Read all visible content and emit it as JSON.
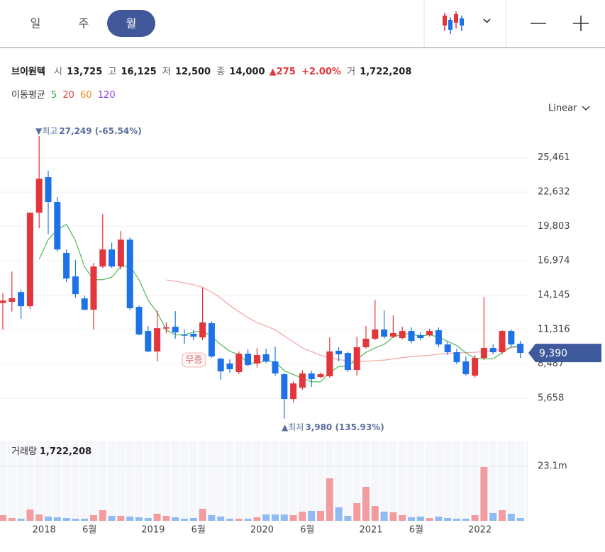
{
  "tabs": [
    "일",
    "주",
    "월"
  ],
  "stock": {
    "name": "브이원텍",
    "fields": [
      {
        "label": "시",
        "value": "13,725"
      },
      {
        "label": "고",
        "value": "16,125"
      },
      {
        "label": "저",
        "value": "12,500"
      },
      {
        "label": "종",
        "value": "14,000"
      }
    ],
    "change": "▲275",
    "change_pct": "+2.00%",
    "volume_label": "거",
    "volume": "1,722,208"
  },
  "moving_average_label": "이동평균",
  "scale_mode": "Linear",
  "chart_data": {
    "type": "candlestick",
    "categories": [
      null,
      null,
      null,
      null,
      "2018",
      null,
      null,
      null,
      null,
      "6월",
      null,
      null,
      null,
      null,
      null,
      null,
      "2019",
      null,
      null,
      null,
      null,
      "6월",
      null,
      null,
      null,
      null,
      null,
      null,
      "2020",
      null,
      null,
      null,
      null,
      "6월",
      null,
      null,
      null,
      null,
      null,
      null,
      "2021",
      null,
      null,
      null,
      null,
      "6월",
      null,
      null,
      null,
      null,
      null,
      null,
      "2022",
      null,
      null,
      null,
      null,
      null
    ],
    "open": [
      13500,
      13600,
      14400,
      13240,
      20940,
      23860,
      21820,
      17620,
      15690,
      13880,
      12950,
      16510,
      17910,
      16510,
      18720,
      13180,
      11200,
      9510,
      11400,
      11550,
      10900,
      10970,
      10670,
      11840,
      8920,
      8520,
      7820,
      9330,
      8520,
      9280,
      8690,
      7640,
      5600,
      6530,
      7700,
      7410,
      7470,
      9570,
      9390,
      7990,
      9860,
      10560,
      11320,
      10730,
      10620,
      11200,
      10850,
      10850,
      11260,
      10090,
      9450,
      8690,
      7520,
      8980,
      9800,
      9450,
      11200,
      10150
    ],
    "high": [
      14300,
      16100,
      14600,
      20940,
      27249,
      24380,
      22230,
      17900,
      17030,
      14100,
      16800,
      20820,
      18490,
      19420,
      18900,
      13300,
      11610,
      12890,
      11900,
      12830,
      11320,
      11270,
      14760,
      12000,
      9000,
      8860,
      9510,
      9700,
      9800,
      9740,
      9920,
      7700,
      7060,
      7990,
      7930,
      7780,
      10670,
      9860,
      9500,
      10730,
      11610,
      13770,
      12890,
      12480,
      11550,
      11500,
      11100,
      11380,
      11490,
      10380,
      9740,
      9100,
      9220,
      14000,
      10090,
      11260,
      11320,
      10380
    ],
    "low": [
      11300,
      12800,
      12200,
      13000,
      19660,
      19190,
      17730,
      15230,
      13940,
      12900,
      11320,
      16390,
      16390,
      16270,
      12950,
      10850,
      9450,
      8690,
      11030,
      10560,
      10150,
      10440,
      10440,
      8980,
      7170,
      7760,
      7640,
      8280,
      8200,
      8570,
      7520,
      3980,
      5310,
      6360,
      6590,
      7290,
      7350,
      8690,
      7820,
      7520,
      9740,
      10440,
      10560,
      10620,
      10500,
      10180,
      10440,
      10730,
      9860,
      9220,
      8460,
      7520,
      7350,
      8800,
      9280,
      9280,
      9860,
      8980
    ],
    "close": [
      13700,
      13900,
      13240,
      20940,
      23740,
      21820,
      17910,
      15520,
      14230,
      12950,
      16510,
      17910,
      16510,
      18720,
      13070,
      10910,
      9510,
      11430,
      11500,
      11080,
      10840,
      10730,
      11900,
      9100,
      7870,
      8050,
      9330,
      8400,
      9220,
      8690,
      7700,
      5600,
      6880,
      7700,
      7230,
      7640,
      9510,
      9280,
      7990,
      9860,
      10560,
      11320,
      10730,
      11030,
      11200,
      10380,
      10620,
      11200,
      10090,
      9450,
      8630,
      7640,
      8980,
      9800,
      9450,
      11200,
      10090,
      9390
    ],
    "up_color": "#e3353c",
    "down_color": "#1c72e6",
    "ylim": [
      2570,
      28240
    ],
    "yticks": [
      {
        "value": 5658,
        "label": "5,658"
      },
      {
        "value": 8487,
        "label": "8,487"
      },
      {
        "value": 11316,
        "label": "11,316"
      },
      {
        "value": 14145,
        "label": "14,145"
      },
      {
        "value": 16974,
        "label": "16,974"
      },
      {
        "value": 19803,
        "label": "19,803"
      },
      {
        "value": 22632,
        "label": "22,632"
      },
      {
        "value": 25461,
        "label": "25,461"
      }
    ],
    "grid": true,
    "moving_averages": [
      {
        "name": "5",
        "color": "#2fae3c",
        "values": [
          null,
          null,
          null,
          null,
          17104,
          18728,
          19530,
          19986,
          18644,
          16486,
          15424,
          15424,
          15622,
          16520,
          16544,
          15424,
          13744,
          12728,
          11284,
          10886,
          10872,
          11116,
          11210,
          10730,
          10088,
          9530,
          9250,
          8550,
          8574,
          8738,
          8668,
          7922,
          7618,
          7314,
          7022,
          7010,
          7792,
          8272,
          8330,
          8856,
          9440,
          9802,
          10092,
          10700,
          10968,
          10932,
          10792,
          10886,
          10698,
          10348,
          9998,
          9402,
          8958,
          8900,
          8900,
          9414,
          9904,
          9986
        ]
      },
      {
        "name": "20",
        "color": "#e5403e",
        "values": [
          null,
          null,
          null,
          null,
          null,
          null,
          null,
          null,
          null,
          null,
          null,
          null,
          null,
          null,
          null,
          null,
          null,
          null,
          15400,
          15300,
          15150,
          15000,
          14800,
          14400,
          13900,
          13300,
          12800,
          12300,
          11900,
          11600,
          11300,
          10800,
          10300,
          9800,
          9500,
          9200,
          9000,
          8850,
          8750,
          8700,
          8700,
          8750,
          8800,
          8900,
          9000,
          9100,
          9150,
          9200,
          9300,
          9350,
          9400,
          9420,
          9450,
          9500,
          9600,
          9700,
          9800,
          9900
        ]
      },
      {
        "name": "60",
        "color": "#f0891f"
      },
      {
        "name": "120",
        "color": "#8a3ee0"
      }
    ],
    "annotations": {
      "high_label": "▼최고",
      "high_text": "27,249 (-65.54%)",
      "low_label": "▲최저",
      "low_text": "3,980 (135.93%)",
      "event": "무증",
      "current_price": "9,390"
    },
    "volume": {
      "title": "거래량",
      "current": "1,722,208",
      "values": [
        2400000,
        1200000,
        900000,
        4800000,
        2700000,
        1800000,
        1500000,
        1200000,
        900000,
        900000,
        2400000,
        4500000,
        2100000,
        2100000,
        1800000,
        1500000,
        1200000,
        3000000,
        2100000,
        1500000,
        900000,
        1200000,
        5100000,
        2400000,
        1800000,
        900000,
        900000,
        900000,
        1500000,
        2700000,
        2700000,
        2700000,
        2400000,
        3900000,
        4200000,
        4200000,
        18000000,
        5700000,
        2100000,
        7500000,
        14400000,
        6300000,
        3900000,
        3600000,
        2400000,
        1500000,
        1800000,
        1200000,
        1800000,
        1200000,
        900000,
        900000,
        2400000,
        22800000,
        3300000,
        4500000,
        3000000,
        1200000
      ],
      "up_color": "#f29ca0",
      "down_color": "#8fbaf2",
      "ylim": [
        0,
        33900000
      ],
      "yticks": [
        {
          "value": 23100000,
          "label": "23.1m"
        }
      ]
    }
  }
}
